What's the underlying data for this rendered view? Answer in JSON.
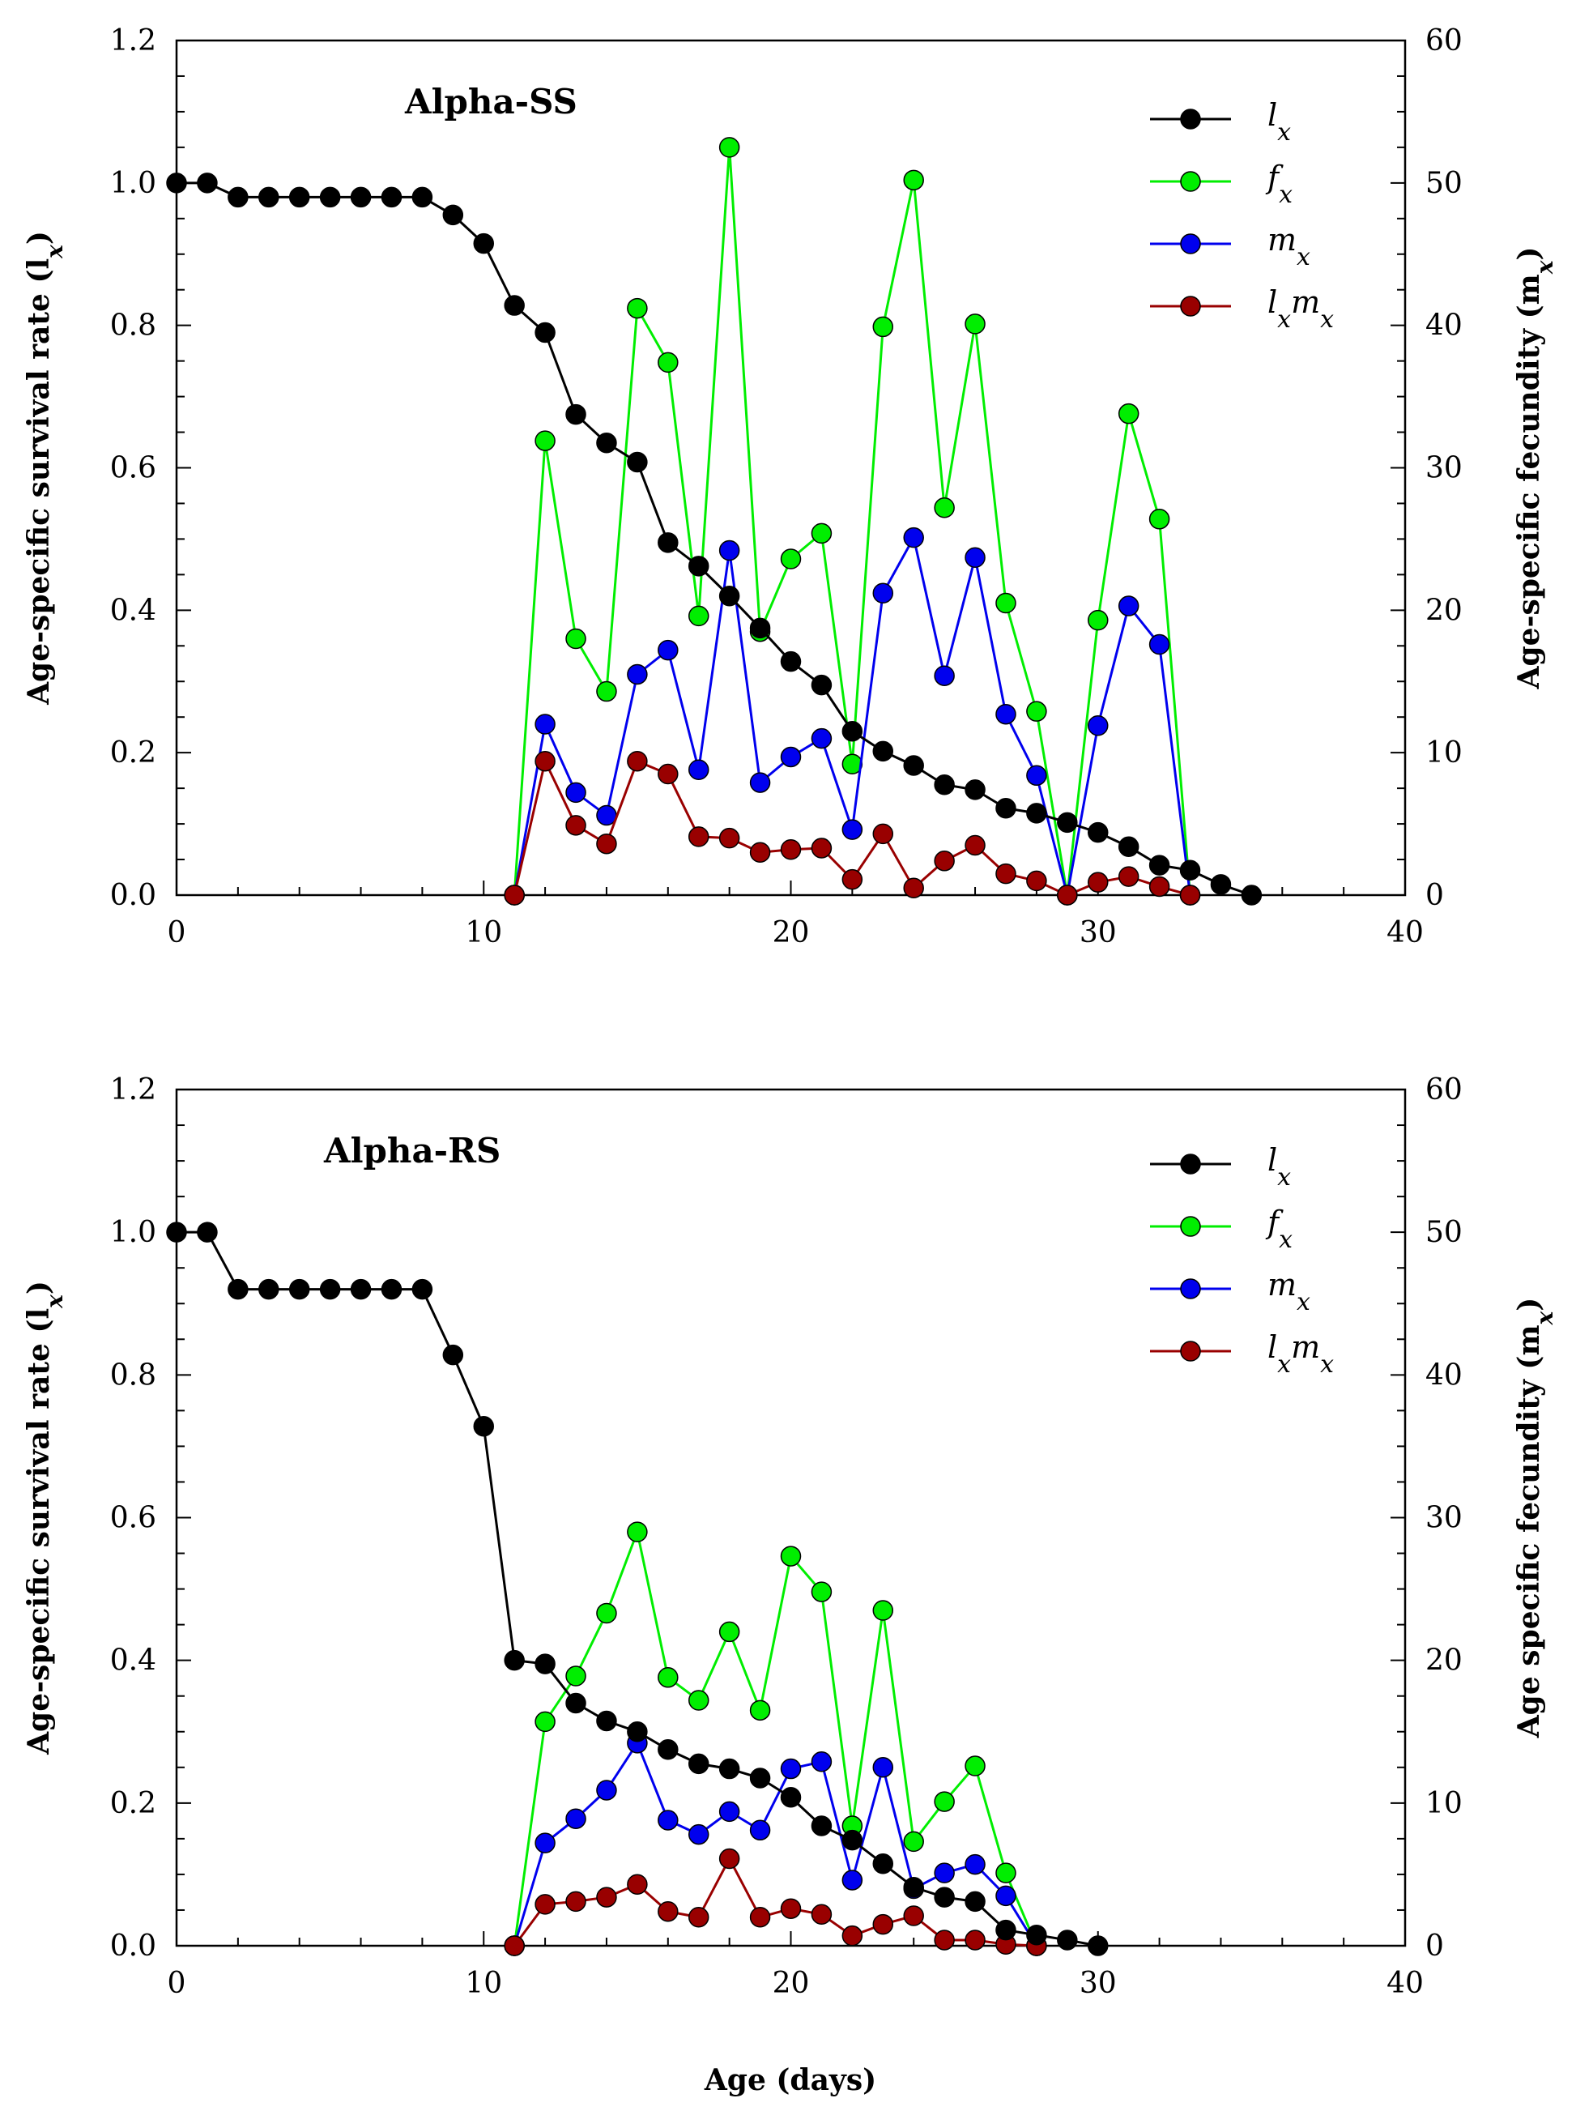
{
  "chart_data": [
    {
      "type": "line",
      "title": "Alpha-SS",
      "xlabel": "Age (days)",
      "ylabel": "Age-specific survival rate (l",
      "ylabel_sub": "x",
      "ylabel_close": ")",
      "y2label": "Age-specific fecundity (m",
      "y2label_sub": "x",
      "y2label_close": ")",
      "xlim": [
        0,
        40
      ],
      "ylim": [
        0,
        1.2
      ],
      "y2lim": [
        0,
        60
      ],
      "xticks": [
        "0",
        "10",
        "20",
        "30",
        "40"
      ],
      "yticks": [
        "0.0",
        "0.2",
        "0.4",
        "0.6",
        "0.8",
        "1.0",
        "1.2"
      ],
      "y2ticks": [
        "0",
        "10",
        "20",
        "30",
        "40",
        "50",
        "60"
      ],
      "legend_position": "top-right",
      "series": [
        {
          "name": "l",
          "sub": "x",
          "axis": "left",
          "color": "#000000",
          "x": [
            0,
            1,
            2,
            3,
            4,
            5,
            6,
            7,
            8,
            9,
            10,
            11,
            12,
            13,
            14,
            15,
            16,
            17,
            18,
            19,
            20,
            21,
            22,
            23,
            24,
            25,
            26,
            27,
            28,
            29,
            30,
            31,
            32,
            33,
            34,
            35
          ],
          "values": [
            1.0,
            1.0,
            0.98,
            0.98,
            0.98,
            0.98,
            0.98,
            0.98,
            0.98,
            0.955,
            0.915,
            0.828,
            0.79,
            0.675,
            0.635,
            0.608,
            0.495,
            0.462,
            0.42,
            0.375,
            0.328,
            0.295,
            0.23,
            0.202,
            0.182,
            0.155,
            0.148,
            0.122,
            0.115,
            0.102,
            0.088,
            0.068,
            0.042,
            0.035,
            0.015,
            0.0
          ]
        },
        {
          "name": "f",
          "sub": "x",
          "axis": "right",
          "color": "#00ee00",
          "x": [
            11,
            12,
            13,
            14,
            15,
            16,
            17,
            18,
            19,
            20,
            21,
            22,
            23,
            24,
            25,
            26,
            27,
            28,
            29,
            30,
            31,
            32,
            33
          ],
          "values": [
            0,
            31.9,
            18.0,
            14.3,
            41.2,
            37.4,
            19.6,
            52.5,
            18.5,
            23.6,
            25.4,
            9.2,
            39.9,
            50.2,
            27.2,
            40.1,
            20.5,
            12.9,
            0,
            19.3,
            33.8,
            26.4,
            0
          ]
        },
        {
          "name": "m",
          "sub": "x",
          "axis": "right",
          "color": "#0000ee",
          "x": [
            11,
            12,
            13,
            14,
            15,
            16,
            17,
            18,
            19,
            20,
            21,
            22,
            23,
            24,
            25,
            26,
            27,
            28,
            29,
            30,
            31,
            32,
            33
          ],
          "values": [
            0,
            12.0,
            7.2,
            5.6,
            15.5,
            17.2,
            8.8,
            24.2,
            7.9,
            9.7,
            11.0,
            4.6,
            21.2,
            25.1,
            15.4,
            23.7,
            12.7,
            8.4,
            0,
            11.9,
            20.3,
            17.6,
            0
          ]
        },
        {
          "name": "l",
          "sub": "x",
          "name2": "m",
          "sub2": "x",
          "axis": "right",
          "color": "#990000",
          "x": [
            11,
            12,
            13,
            14,
            15,
            16,
            17,
            18,
            19,
            20,
            21,
            22,
            23,
            24,
            25,
            26,
            27,
            28,
            29,
            30,
            31,
            32,
            33
          ],
          "values": [
            0,
            9.4,
            4.9,
            3.6,
            9.4,
            8.5,
            4.1,
            4.0,
            3.0,
            3.2,
            3.3,
            1.1,
            4.3,
            0.5,
            2.4,
            3.5,
            1.5,
            1.0,
            0,
            0.9,
            1.3,
            0.6,
            0
          ]
        }
      ]
    },
    {
      "type": "line",
      "title": "Alpha-RS",
      "xlabel": "Age (days)",
      "ylabel": "Age-specific survival rate (l",
      "ylabel_sub": "x",
      "ylabel_close": ")",
      "y2label": "Age specific fecundity (m",
      "y2label_sub": "x",
      "y2label_close": ")",
      "xlim": [
        0,
        40
      ],
      "ylim": [
        0,
        1.2
      ],
      "y2lim": [
        0,
        60
      ],
      "xticks": [
        "0",
        "10",
        "20",
        "30",
        "40"
      ],
      "yticks": [
        "0.0",
        "0.2",
        "0.4",
        "0.6",
        "0.8",
        "1.0",
        "1.2"
      ],
      "y2ticks": [
        "0",
        "10",
        "20",
        "30",
        "40",
        "50",
        "60"
      ],
      "legend_position": "top-right",
      "series": [
        {
          "name": "l",
          "sub": "x",
          "axis": "left",
          "color": "#000000",
          "x": [
            0,
            1,
            2,
            3,
            4,
            5,
            6,
            7,
            8,
            9,
            10,
            11,
            12,
            13,
            14,
            15,
            16,
            17,
            18,
            19,
            20,
            21,
            22,
            23,
            24,
            25,
            26,
            27,
            28,
            29,
            30
          ],
          "values": [
            1.0,
            1.0,
            0.92,
            0.92,
            0.92,
            0.92,
            0.92,
            0.92,
            0.92,
            0.828,
            0.728,
            0.4,
            0.395,
            0.34,
            0.315,
            0.3,
            0.275,
            0.255,
            0.248,
            0.235,
            0.208,
            0.168,
            0.148,
            0.115,
            0.082,
            0.068,
            0.062,
            0.022,
            0.015,
            0.008,
            0.0
          ]
        },
        {
          "name": "f",
          "sub": "x",
          "axis": "right",
          "color": "#00ee00",
          "x": [
            11,
            12,
            13,
            14,
            15,
            16,
            17,
            18,
            19,
            20,
            21,
            22,
            23,
            24,
            25,
            26,
            27,
            28
          ],
          "values": [
            0,
            15.7,
            18.9,
            23.3,
            29.0,
            18.8,
            17.2,
            22.0,
            16.5,
            27.3,
            24.8,
            8.4,
            23.5,
            7.3,
            10.1,
            12.6,
            5.1,
            0
          ]
        },
        {
          "name": "m",
          "sub": "x",
          "axis": "right",
          "color": "#0000ee",
          "x": [
            11,
            12,
            13,
            14,
            15,
            16,
            17,
            18,
            19,
            20,
            21,
            22,
            23,
            24,
            25,
            26,
            27,
            28
          ],
          "values": [
            0,
            7.2,
            8.9,
            10.9,
            14.2,
            8.8,
            7.8,
            9.4,
            8.1,
            12.4,
            12.9,
            4.6,
            12.5,
            4.0,
            5.1,
            5.7,
            3.5,
            0
          ]
        },
        {
          "name": "l",
          "sub": "x",
          "name2": "m",
          "sub2": "x",
          "axis": "right",
          "color": "#990000",
          "x": [
            11,
            12,
            13,
            14,
            15,
            16,
            17,
            18,
            19,
            20,
            21,
            22,
            23,
            24,
            25,
            26,
            27,
            28
          ],
          "values": [
            0,
            2.9,
            3.1,
            3.4,
            4.3,
            2.4,
            2.0,
            6.1,
            2.0,
            2.6,
            2.2,
            0.7,
            1.5,
            2.1,
            0.4,
            0.4,
            0.1,
            0
          ]
        }
      ]
    }
  ]
}
